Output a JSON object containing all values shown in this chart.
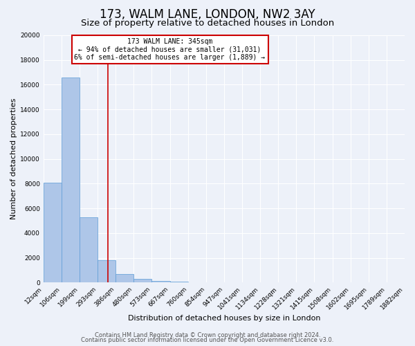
{
  "title": "173, WALM LANE, LONDON, NW2 3AY",
  "subtitle": "Size of property relative to detached houses in London",
  "xlabel": "Distribution of detached houses by size in London",
  "ylabel": "Number of detached properties",
  "bar_values": [
    8100,
    16600,
    5300,
    1800,
    700,
    300,
    150,
    100,
    0,
    0,
    0,
    0,
    0,
    0,
    0,
    0,
    0,
    0,
    0,
    0
  ],
  "x_labels": [
    "12sqm",
    "106sqm",
    "199sqm",
    "293sqm",
    "386sqm",
    "480sqm",
    "573sqm",
    "667sqm",
    "760sqm",
    "854sqm",
    "947sqm",
    "1041sqm",
    "1134sqm",
    "1228sqm",
    "1321sqm",
    "1415sqm",
    "1508sqm",
    "1602sqm",
    "1695sqm",
    "1789sqm",
    "1882sqm"
  ],
  "bar_color": "#aec6e8",
  "bar_edge_color": "#5b9bd5",
  "vline_x": 3.56,
  "vline_color": "#cc0000",
  "annotation_text": "173 WALM LANE: 345sqm\n← 94% of detached houses are smaller (31,031)\n6% of semi-detached houses are larger (1,889) →",
  "annotation_box_color": "#ffffff",
  "annotation_box_edge": "#cc0000",
  "ylim": [
    0,
    20000
  ],
  "yticks": [
    0,
    2000,
    4000,
    6000,
    8000,
    10000,
    12000,
    14000,
    16000,
    18000,
    20000
  ],
  "footer_line1": "Contains HM Land Registry data © Crown copyright and database right 2024.",
  "footer_line2": "Contains public sector information licensed under the Open Government Licence v3.0.",
  "bg_color": "#edf1f9",
  "grid_color": "#ffffff",
  "title_fontsize": 12,
  "subtitle_fontsize": 9.5,
  "axis_label_fontsize": 8,
  "tick_fontsize": 6.5,
  "footer_fontsize": 6
}
